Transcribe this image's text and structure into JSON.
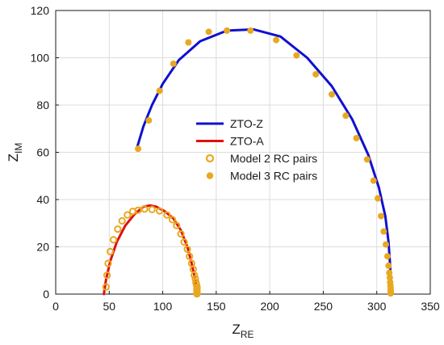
{
  "chart_data": {
    "type": "scatter",
    "xlabel": "Z",
    "xlabel_sub": "RE",
    "ylabel": "Z",
    "ylabel_sub": "IM",
    "xlim": [
      0,
      350
    ],
    "ylim": [
      0,
      120
    ],
    "xticks": [
      0,
      50,
      100,
      150,
      200,
      250,
      300,
      350
    ],
    "yticks": [
      0,
      20,
      40,
      60,
      80,
      100,
      120
    ],
    "grid": true,
    "legend_position": "center",
    "colors": {
      "zto_z": "#1010d0",
      "zto_a": "#e01010",
      "model": "#e8a820"
    },
    "series": [
      {
        "name": "ZTO-Z",
        "kind": "line",
        "x": [
          76,
          82,
          90,
          100,
          115,
          135,
          160,
          185,
          210,
          235,
          258,
          277,
          292,
          302,
          308,
          311,
          312.5,
          313,
          313
        ],
        "y": [
          62,
          71,
          80,
          89,
          99,
          107,
          111.5,
          112,
          109,
          100,
          88,
          74,
          59,
          45,
          33,
          22,
          12,
          4,
          0
        ]
      },
      {
        "name": "ZTO-A",
        "kind": "line",
        "x": [
          45,
          47,
          51,
          57,
          65,
          74,
          82,
          88,
          94,
          102,
          110,
          117,
          123,
          127,
          130,
          131.5,
          132
        ],
        "y": [
          0,
          6,
          14,
          22,
          29,
          34,
          37,
          37.5,
          37,
          35,
          32,
          27,
          20,
          13,
          7,
          3,
          0
        ]
      },
      {
        "name": "Model 2 RC pairs",
        "kind": "open-marker",
        "x": [
          47,
          48,
          49,
          51,
          54,
          58,
          62,
          67,
          72,
          77,
          83,
          90,
          97,
          104,
          109,
          113,
          117,
          120,
          123,
          125,
          127,
          128.5,
          129.5,
          130.5,
          131,
          131.5,
          132,
          132,
          132,
          132,
          132,
          132,
          132,
          132
        ],
        "y": [
          3,
          8,
          13,
          18,
          23,
          27.5,
          31,
          33.5,
          35,
          35.5,
          36,
          35.8,
          35.2,
          33.5,
          31.5,
          29,
          25.5,
          22,
          19,
          16,
          13,
          10.5,
          8,
          6.5,
          5,
          4,
          3,
          2.3,
          1.7,
          1.2,
          0.8,
          0.5,
          0.3,
          0.1
        ]
      },
      {
        "name": "Model 3 RC pairs",
        "kind": "filled-marker",
        "x": [
          77,
          87,
          97,
          110,
          124,
          143,
          160,
          182,
          206,
          225,
          243,
          258,
          271,
          281,
          291,
          297,
          301,
          304,
          306.5,
          308.5,
          310,
          311,
          311.7,
          312.2,
          312.5,
          312.8,
          313,
          313,
          313,
          313
        ],
        "y": [
          61.5,
          73.5,
          86,
          97.5,
          106.5,
          111,
          111.5,
          111.5,
          107.5,
          101,
          93,
          84.5,
          75.5,
          66,
          57,
          48,
          40.5,
          33,
          26.5,
          21,
          16,
          12,
          9,
          7,
          5,
          3.5,
          2.5,
          1.5,
          0.8,
          0.3
        ]
      }
    ]
  }
}
